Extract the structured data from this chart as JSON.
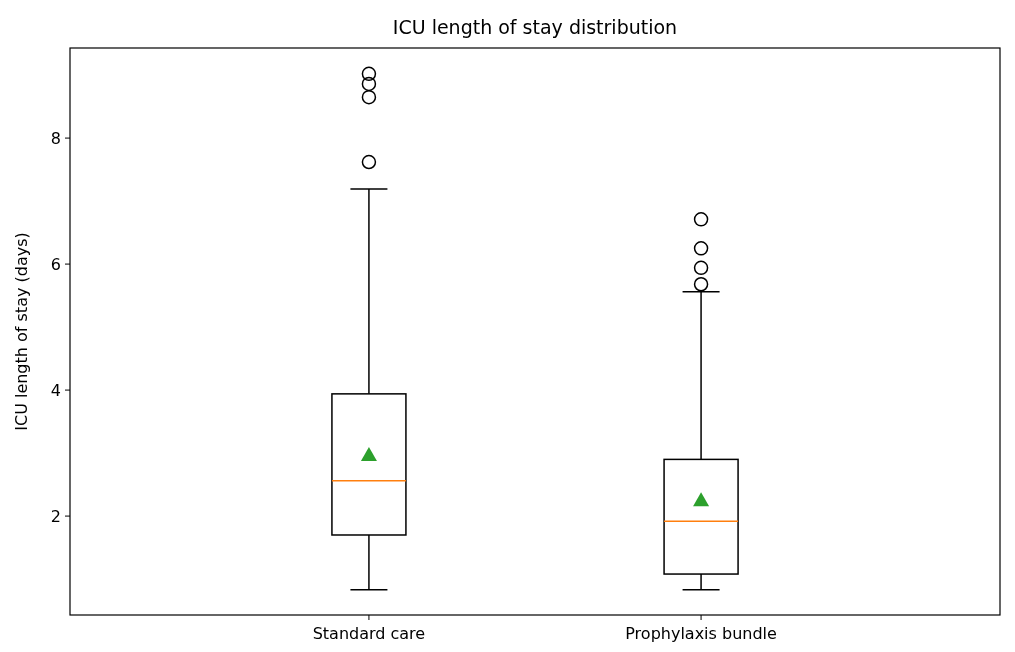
{
  "chart_data": {
    "type": "box",
    "title": "ICU length of stay distribution",
    "ylabel": "ICU length of stay (days)",
    "categories": [
      "Standard care",
      "Prophylaxis bundle"
    ],
    "boxes": [
      {
        "low": 0.83,
        "q1": 1.7,
        "median": 2.56,
        "q3": 3.94,
        "high": 7.19,
        "mean": 2.97,
        "outliers": [
          7.62,
          8.65,
          8.86,
          9.02
        ]
      },
      {
        "low": 0.83,
        "q1": 1.08,
        "median": 1.92,
        "q3": 2.9,
        "high": 5.56,
        "mean": 2.25,
        "outliers": [
          5.68,
          5.94,
          6.25,
          6.71
        ]
      }
    ],
    "ylim": [
      0.43,
      9.43
    ],
    "yticks": [
      2,
      4,
      6,
      8
    ],
    "grid": false
  }
}
